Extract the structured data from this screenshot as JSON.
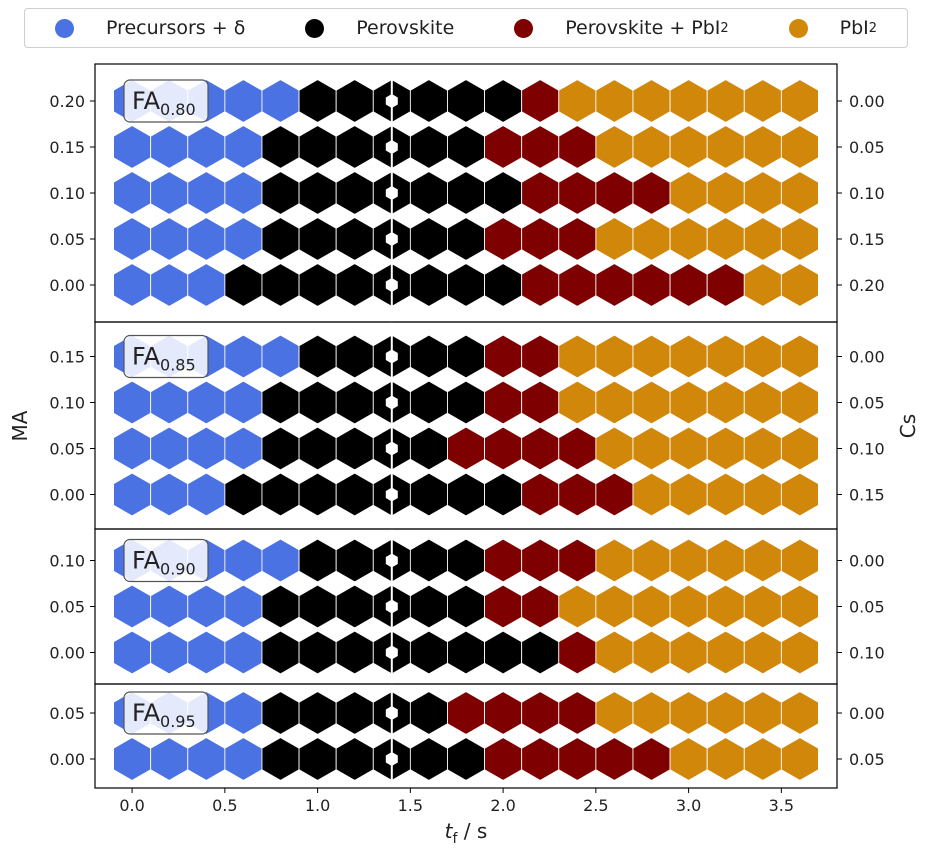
{
  "legend": [
    {
      "label": "Precursors + δ",
      "color": "#4a72e2"
    },
    {
      "label": "Perovskite",
      "color": "#000000"
    },
    {
      "label": "Perovskite + PbI",
      "sub": "2",
      "color": "#7e0000"
    },
    {
      "label": "PbI",
      "sub": "2",
      "color": "#d1870a"
    }
  ],
  "chart_data": [
    {
      "type": "heatmap",
      "panel_label": "FA",
      "panel_label_sub": "0.80",
      "x_values": [
        0.0,
        0.2,
        0.4,
        0.6,
        0.8,
        1.0,
        1.2,
        1.4,
        1.6,
        1.8,
        2.0,
        2.2,
        2.4,
        2.6,
        2.8,
        3.0,
        3.2,
        3.4,
        3.6
      ],
      "y_ticks": [
        "0.00",
        "0.05",
        "0.10",
        "0.15",
        "0.20"
      ],
      "cs_ticks": [
        "0.20",
        "0.15",
        "0.10",
        "0.05",
        "0.00"
      ],
      "rows": [
        {
          "MA": 0.2,
          "Cs": 0.0,
          "phases": "PPPPPKKKKKKRLLLLLLL"
        },
        {
          "MA": 0.15,
          "Cs": 0.05,
          "phases": "PPPPKKKKKKRRRLLLLLL"
        },
        {
          "MA": 0.1,
          "Cs": 0.1,
          "phases": "PPPPKKKKKKKRRRRLLLL"
        },
        {
          "MA": 0.05,
          "Cs": 0.15,
          "phases": "PPPPKKKKKKRRRLLLLLL"
        },
        {
          "MA": 0.0,
          "Cs": 0.2,
          "phases": "PPPKKKKKKKKRRRRRRLL"
        }
      ],
      "marker_x": 1.4
    },
    {
      "type": "heatmap",
      "panel_label": "FA",
      "panel_label_sub": "0.85",
      "x_values": [
        0.0,
        0.2,
        0.4,
        0.6,
        0.8,
        1.0,
        1.2,
        1.4,
        1.6,
        1.8,
        2.0,
        2.2,
        2.4,
        2.6,
        2.8,
        3.0,
        3.2,
        3.4,
        3.6
      ],
      "y_ticks": [
        "0.00",
        "0.05",
        "0.10",
        "0.15"
      ],
      "cs_ticks": [
        "0.15",
        "0.10",
        "0.05",
        "0.00"
      ],
      "rows": [
        {
          "MA": 0.15,
          "Cs": 0.0,
          "phases": "PPPPPKKKKKRRLLLLLLL"
        },
        {
          "MA": 0.1,
          "Cs": 0.05,
          "phases": "PPPPKKKKKKRRLLLLLLL"
        },
        {
          "MA": 0.05,
          "Cs": 0.1,
          "phases": "PPPPKKKKKRRRRLLLLLL"
        },
        {
          "MA": 0.0,
          "Cs": 0.15,
          "phases": "PPPKKKKKKKKRRRLLLLL"
        }
      ],
      "marker_x": 1.4
    },
    {
      "type": "heatmap",
      "panel_label": "FA",
      "panel_label_sub": "0.90",
      "x_values": [
        0.0,
        0.2,
        0.4,
        0.6,
        0.8,
        1.0,
        1.2,
        1.4,
        1.6,
        1.8,
        2.0,
        2.2,
        2.4,
        2.6,
        2.8,
        3.0,
        3.2,
        3.4,
        3.6
      ],
      "y_ticks": [
        "0.00",
        "0.05",
        "0.10"
      ],
      "cs_ticks": [
        "0.10",
        "0.05",
        "0.00"
      ],
      "rows": [
        {
          "MA": 0.1,
          "Cs": 0.0,
          "phases": "PPPPPKKKKKRRRLLLLLL"
        },
        {
          "MA": 0.05,
          "Cs": 0.05,
          "phases": "PPPPKKKKKKRRLLLLLLL"
        },
        {
          "MA": 0.0,
          "Cs": 0.1,
          "phases": "PPPPKKKKKKKKRLLLLLL"
        }
      ],
      "marker_x": 1.4
    },
    {
      "type": "heatmap",
      "panel_label": "FA",
      "panel_label_sub": "0.95",
      "x_values": [
        0.0,
        0.2,
        0.4,
        0.6,
        0.8,
        1.0,
        1.2,
        1.4,
        1.6,
        1.8,
        2.0,
        2.2,
        2.4,
        2.6,
        2.8,
        3.0,
        3.2,
        3.4,
        3.6
      ],
      "y_ticks": [
        "0.00",
        "0.05"
      ],
      "cs_ticks": [
        "0.05",
        "0.00"
      ],
      "rows": [
        {
          "MA": 0.05,
          "Cs": 0.0,
          "phases": "PPPPKKKKKRRRRLLLLLL"
        },
        {
          "MA": 0.0,
          "Cs": 0.05,
          "phases": "PPPPKKKKKKRRRRRLLLL"
        }
      ],
      "marker_x": 1.4
    }
  ],
  "phase_colors": {
    "P": "#4a72e2",
    "K": "#000000",
    "R": "#7e0000",
    "L": "#d1870a"
  },
  "x_axis": {
    "label": "t",
    "label_sub": "f",
    "label_suffix": " / s",
    "ticks": [
      "0.0",
      "0.5",
      "1.0",
      "1.5",
      "2.0",
      "2.5",
      "3.0",
      "3.5"
    ],
    "range": [
      -0.2,
      3.8
    ]
  },
  "y_label_left": "MA",
  "y_label_right": "Cs"
}
